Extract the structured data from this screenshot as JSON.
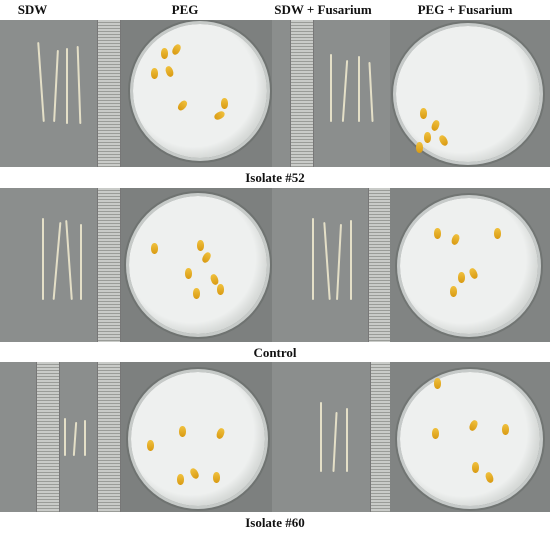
{
  "columns": [
    "SDW",
    "PEG",
    "SDW + Fusarium",
    "PEG + Fusarium"
  ],
  "rows": [
    {
      "label": "Isolate #52"
    },
    {
      "label": "Control"
    },
    {
      "label": "Isolate #60"
    }
  ]
}
